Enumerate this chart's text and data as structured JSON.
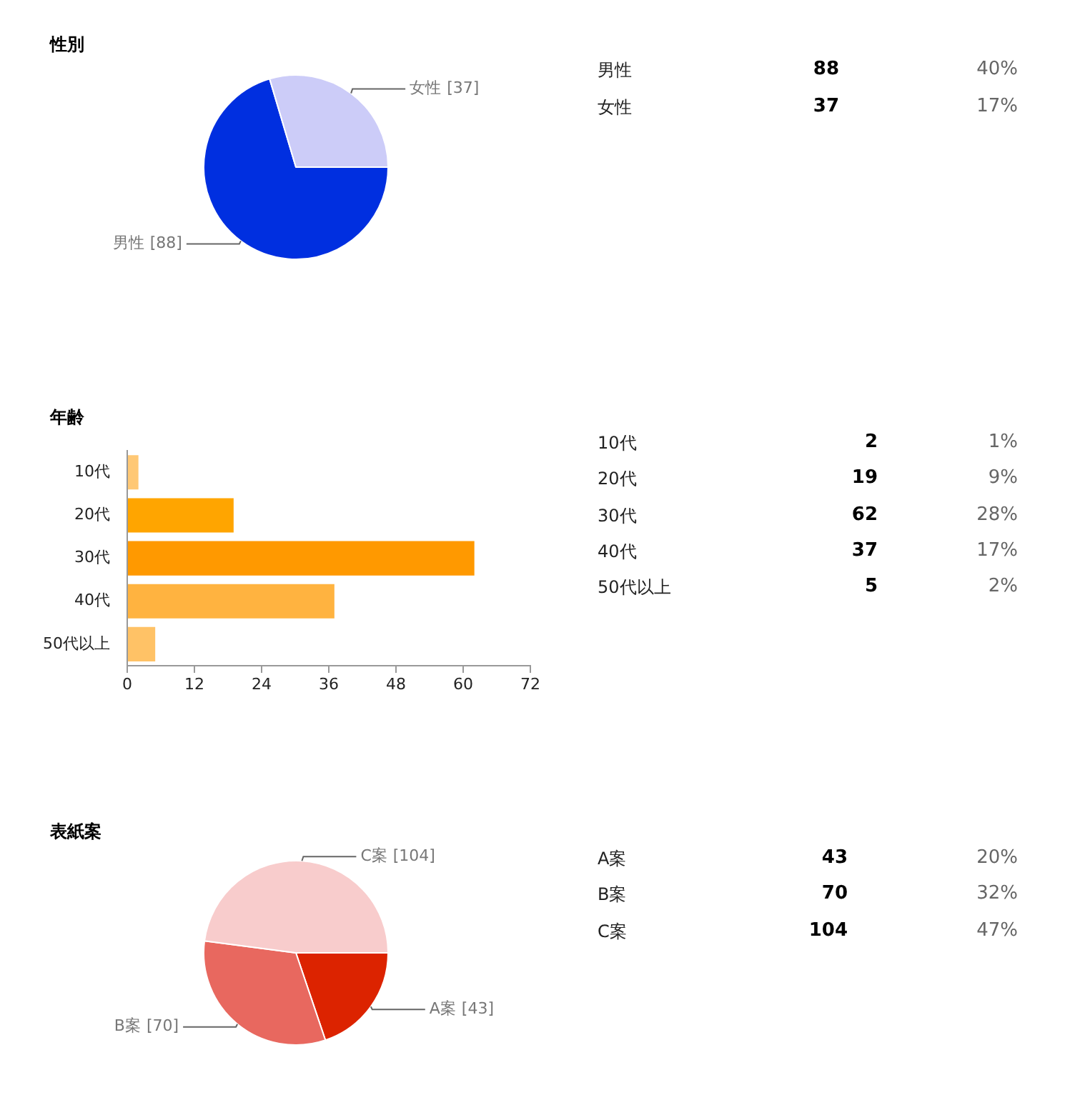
{
  "chart_data": [
    {
      "type": "pie",
      "title": "性別",
      "categories": [
        "男性",
        "女性"
      ],
      "values": [
        88,
        37
      ],
      "colors": [
        "#002fe0",
        "#ccccf8"
      ],
      "value_labels": [
        "[88]",
        "[37]"
      ]
    },
    {
      "type": "other",
      "annotations": [
        "男性",
        "88",
        "40%",
        "女性",
        "37",
        "17%"
      ]
    },
    {
      "type": "bar",
      "orientation": "horizontal",
      "title": "年齢",
      "categories": [
        "10代",
        "20代",
        "30代",
        "40代",
        "50代以上"
      ],
      "values": [
        2,
        19,
        62,
        37,
        5
      ],
      "colors": [
        "#ffc875",
        "#ffa500",
        "#ff9900",
        "#ffb340",
        "#ffc266"
      ],
      "xlim": [
        0,
        72
      ],
      "xticks": [
        0,
        12,
        24,
        36,
        48,
        60,
        72
      ],
      "annotations": [
        "2",
        "1%",
        "19",
        "9%",
        "62",
        "28%",
        "37",
        "17%",
        "5",
        "2%"
      ]
    },
    {
      "type": "pie",
      "title": "表紙案",
      "categories": [
        "A案",
        "B案",
        "C案"
      ],
      "values": [
        43,
        70,
        104
      ],
      "colors": [
        "#dc2300",
        "#e8685f",
        "#f8cccc"
      ],
      "value_labels": [
        "[43]",
        "[70]",
        "[104]"
      ]
    },
    {
      "type": "other",
      "annotations": [
        "A案",
        "43",
        "20%",
        "B案",
        "70",
        "32%",
        "C案",
        "104",
        "47%"
      ]
    }
  ]
}
